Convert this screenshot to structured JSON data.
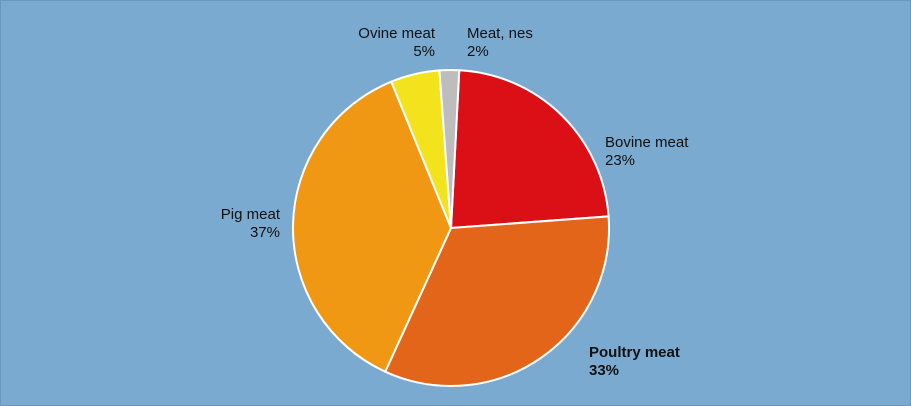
{
  "chart_data": {
    "type": "pie",
    "slices": [
      {
        "name": "Bovine meat",
        "value": 23,
        "label_value": "23%",
        "color": "#DA1016"
      },
      {
        "name": "Poultry meat",
        "value": 33,
        "label_value": "33%",
        "color": "#E36519"
      },
      {
        "name": "Pig meat",
        "value": 37,
        "label_value": "37%",
        "color": "#F09814"
      },
      {
        "name": "Ovine meat",
        "value": 5,
        "label_value": "5%",
        "color": "#F3E31C"
      },
      {
        "name": "Meat, nes",
        "value": 2,
        "label_value": "2%",
        "color": "#BDBDBD"
      }
    ],
    "start_angle_deg": 3,
    "direction": "clockwise",
    "emphasized_slice": "Poultry meat",
    "background": "#7BAAD0",
    "slice_border": "#FFFFFF"
  }
}
